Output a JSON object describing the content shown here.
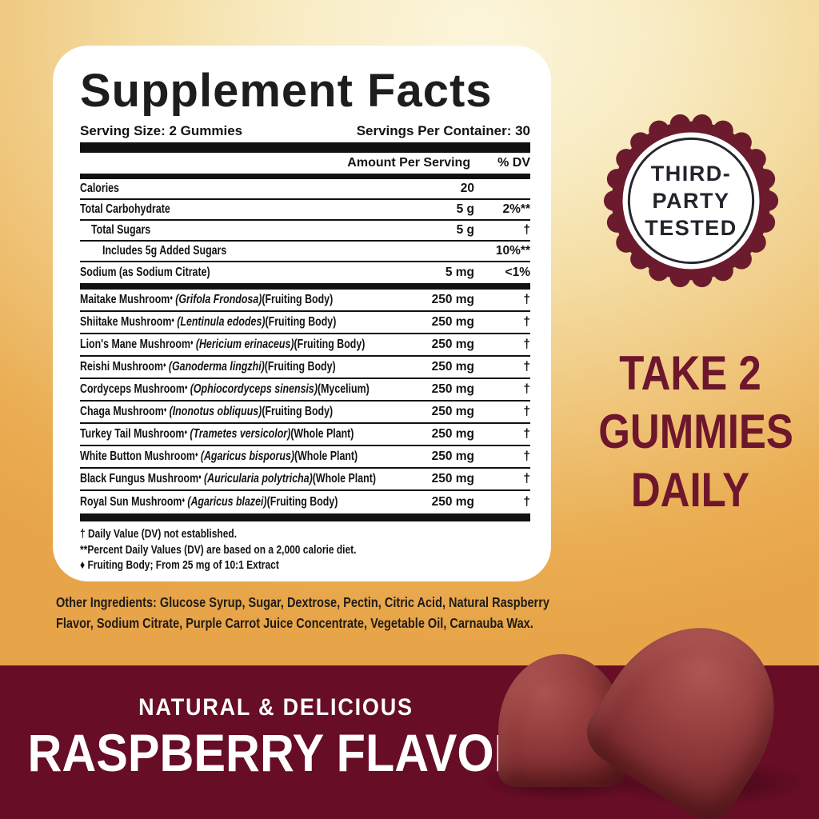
{
  "panel": {
    "title": "Supplement Facts",
    "serving_size": "Serving Size: 2 Gummies",
    "servings_per_container": "Servings Per Container: 30",
    "amount_header": "Amount Per Serving",
    "dv_header": "% DV",
    "marker": "♦",
    "nutrients": [
      {
        "name": "Calories",
        "amount": "20",
        "dv": ""
      },
      {
        "name": "Total Carbohydrate",
        "amount": "5 g",
        "dv": "2%**"
      },
      {
        "name": "Total Sugars",
        "amount": "5 g",
        "dv": "†"
      },
      {
        "name": "Includes 5g Added Sugars",
        "amount": "",
        "dv": "10%**"
      },
      {
        "name": "Sodium (as Sodium Citrate)",
        "amount": "5 mg",
        "dv": "<1%"
      }
    ],
    "botanicals": [
      {
        "name": "Maitake Mushroom",
        "latin": "(Grifola Frondosa)",
        "part": "(Fruiting Body)",
        "amount": "250 mg",
        "dv": "†"
      },
      {
        "name": "Shiitake Mushroom",
        "latin": "(Lentinula edodes)",
        "part": "(Fruiting Body)",
        "amount": "250 mg",
        "dv": "†"
      },
      {
        "name": "Lion's Mane Mushroom",
        "latin": "(Hericium erinaceus)",
        "part": "(Fruiting Body)",
        "amount": "250 mg",
        "dv": "†"
      },
      {
        "name": "Reishi Mushroom",
        "latin": "(Ganoderma lingzhi)",
        "part": "(Fruiting Body)",
        "amount": "250 mg",
        "dv": "†"
      },
      {
        "name": "Cordyceps Mushroom",
        "latin": "(Ophiocordyceps sinensis)",
        "part": "(Mycelium)",
        "amount": "250 mg",
        "dv": "†"
      },
      {
        "name": "Chaga Mushroom",
        "latin": "(Inonotus obliquus)",
        "part": "(Fruiting Body)",
        "amount": "250 mg",
        "dv": "†"
      },
      {
        "name": "Turkey Tail Mushroom",
        "latin": "(Trametes versicolor)",
        "part": "(Whole Plant)",
        "amount": "250 mg",
        "dv": "†"
      },
      {
        "name": "White Button Mushroom",
        "latin": "(Agaricus bisporus)",
        "part": "(Whole Plant)",
        "amount": "250 mg",
        "dv": "†"
      },
      {
        "name": "Black Fungus Mushroom",
        "latin": "(Auricularia polytricha)",
        "part": "(Whole Plant)",
        "amount": "250 mg",
        "dv": "†"
      },
      {
        "name": "Royal Sun Mushroom",
        "latin": "(Agaricus blazei)",
        "part": "(Fruiting Body)",
        "amount": "250 mg",
        "dv": "†"
      }
    ],
    "footnotes": [
      "† Daily Value (DV) not established.",
      "**Percent Daily Values (DV) are based on a 2,000 calorie diet.",
      "♦ Fruiting Body; From 25 mg of 10:1 Extract"
    ]
  },
  "other_ingredients": "Other Ingredients: Glucose Syrup, Sugar, Dextrose, Pectin, Citric Acid, Natural Raspberry Flavor, Sodium Citrate, Purple Carrot Juice Concentrate, Vegetable Oil, Carnauba Wax.",
  "badge": {
    "lines": [
      "THIRD-",
      "PARTY",
      "TESTED"
    ],
    "ring_color": "#6b1b2d",
    "text_color": "#23232d"
  },
  "dosage": {
    "lines": [
      "TAKE 2",
      "GUMMIES",
      "DAILY"
    ],
    "color": "#6d162c"
  },
  "banner": {
    "subtitle": "NATURAL & DELICIOUS",
    "title": "RASPBERRY FLAVOR",
    "bg": "#670d26",
    "text_color": "#ffffff"
  },
  "colors": {
    "gold_edge": "#e8a448",
    "gold_center": "#fcf5db",
    "gummy_red": "#8f3a3d"
  }
}
